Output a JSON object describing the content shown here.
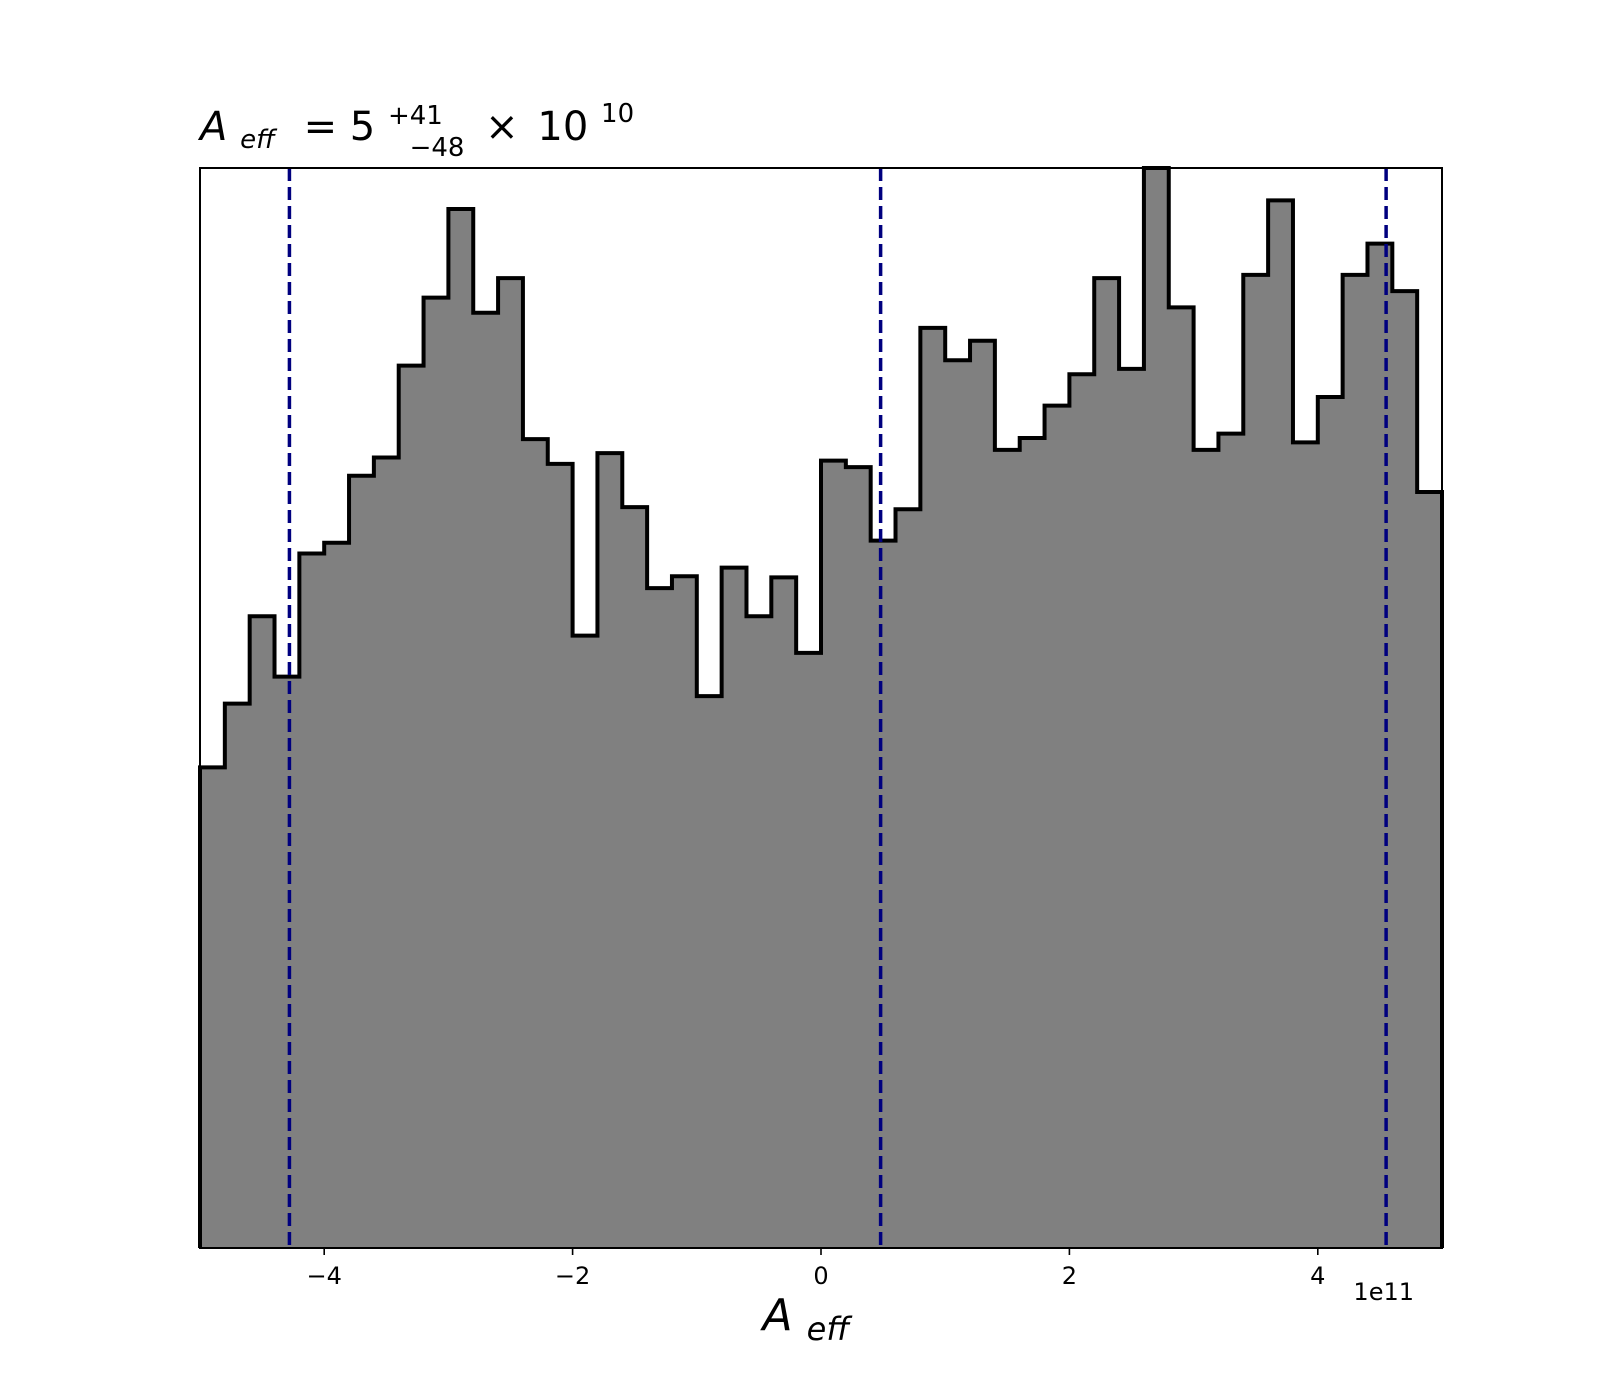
{
  "chart_data": {
    "type": "histogram",
    "title": {
      "main": "A",
      "main_sub": "eff",
      "eq": "= 5",
      "sup": "+41",
      "sub": "−48",
      "times": "×",
      "base": "10",
      "exp": "10"
    },
    "xlabel": {
      "main": "A",
      "sub": "eff"
    },
    "x_offset_text": "1e11",
    "xlim": [
      -5.0,
      5.0
    ],
    "ylim": [
      0,
      1.0
    ],
    "y_ticks_shown": false,
    "grid": false,
    "bin_edges": [
      -5.0,
      -4.8,
      -4.6,
      -4.4,
      -4.2,
      -4.0,
      -3.8,
      -3.6,
      -3.4,
      -3.2,
      -3.0,
      -2.8,
      -2.6,
      -2.4,
      -2.2,
      -2.0,
      -1.8,
      -1.6,
      -1.4,
      -1.2,
      -1.0,
      -0.8,
      -0.6,
      -0.4,
      -0.2,
      0.0,
      0.2,
      0.4,
      0.6,
      0.8,
      1.0,
      1.2,
      1.4,
      1.6,
      1.8,
      2.0,
      2.2,
      2.4,
      2.6,
      2.8,
      3.0,
      3.2,
      3.4,
      3.6,
      3.8,
      4.0,
      4.2,
      4.4,
      4.6,
      4.8,
      5.0
    ],
    "counts": [
      0.445,
      0.504,
      0.585,
      0.529,
      0.643,
      0.653,
      0.715,
      0.732,
      0.817,
      0.88,
      0.962,
      0.866,
      0.898,
      0.749,
      0.726,
      0.567,
      0.736,
      0.686,
      0.611,
      0.622,
      0.511,
      0.63,
      0.585,
      0.621,
      0.551,
      0.729,
      0.723,
      0.655,
      0.684,
      0.852,
      0.822,
      0.84,
      0.739,
      0.75,
      0.78,
      0.809,
      0.898,
      0.814,
      1.0,
      0.871,
      0.739,
      0.754,
      0.901,
      0.97,
      0.746,
      0.788,
      0.901,
      0.93,
      0.886,
      0.7
    ],
    "fill_color": "#808080",
    "edge_color": "#000000",
    "vlines": [
      -4.28,
      0.48,
      4.55
    ],
    "vline_color": "#00007f",
    "x_ticks": [
      {
        "value": -4,
        "label": "−4"
      },
      {
        "value": -2,
        "label": "−2"
      },
      {
        "value": 0,
        "label": "0"
      },
      {
        "value": 2,
        "label": "2"
      },
      {
        "value": 4,
        "label": "4"
      }
    ]
  }
}
